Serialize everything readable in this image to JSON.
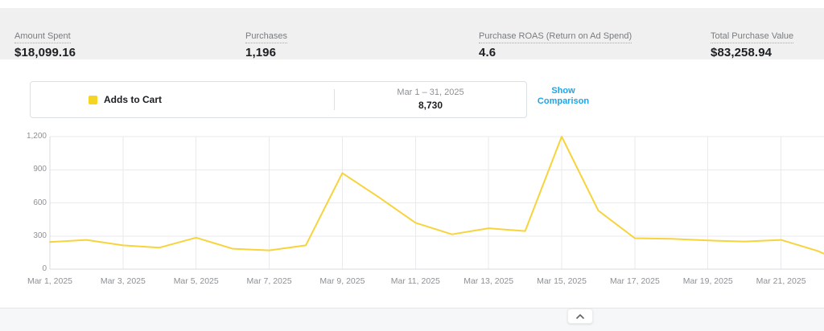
{
  "metrics": {
    "items": [
      {
        "label": "Amount Spent",
        "value": "$18,099.16"
      },
      {
        "label": "Purchases",
        "value": "1,196"
      },
      {
        "label": "Purchase ROAS (Return on Ad Spend)",
        "value": "4.6"
      },
      {
        "label": "Total Purchase Value",
        "value": "$83,258.94"
      }
    ]
  },
  "legend": {
    "metric_label": "Adds to Cart",
    "swatch_color": "#F5D423",
    "date_range": "Mar 1 – 31, 2025",
    "total": "8,730",
    "show_comparison_label": "Show Comparison"
  },
  "chart_data": {
    "type": "line",
    "title": "Adds to Cart",
    "x_labels": [
      "Mar 1, 2025",
      "Mar 3, 2025",
      "Mar 5, 2025",
      "Mar 7, 2025",
      "Mar 9, 2025",
      "Mar 11, 2025",
      "Mar 13, 2025",
      "Mar 15, 2025",
      "Mar 17, 2025",
      "Mar 19, 2025",
      "Mar 21, 2025"
    ],
    "x_tick_days": [
      1,
      3,
      5,
      7,
      9,
      11,
      13,
      15,
      17,
      19,
      21
    ],
    "y_ticks": [
      "0",
      "300",
      "600",
      "900",
      "1,200"
    ],
    "y_tick_values": [
      0,
      300,
      600,
      900,
      1200
    ],
    "ylim": [
      0,
      1200
    ],
    "grid": true,
    "legend_position": "top",
    "series": [
      {
        "name": "Adds to Cart",
        "color": "#F7D33C",
        "x_days": [
          1,
          2,
          3,
          4,
          5,
          6,
          7,
          8,
          9,
          10,
          11,
          12,
          13,
          14,
          15,
          16,
          17,
          18,
          19,
          20,
          21,
          22
        ],
        "values": [
          245,
          265,
          215,
          195,
          285,
          185,
          170,
          215,
          870,
          650,
          420,
          315,
          370,
          345,
          1200,
          530,
          280,
          275,
          260,
          250,
          265,
          165
        ]
      }
    ],
    "edge_partial_value": 140
  },
  "footer": {
    "collapse_icon": "chevron-up"
  },
  "colors": {
    "accent_yellow": "#F7D33C",
    "link_blue": "#1DA5E8"
  }
}
